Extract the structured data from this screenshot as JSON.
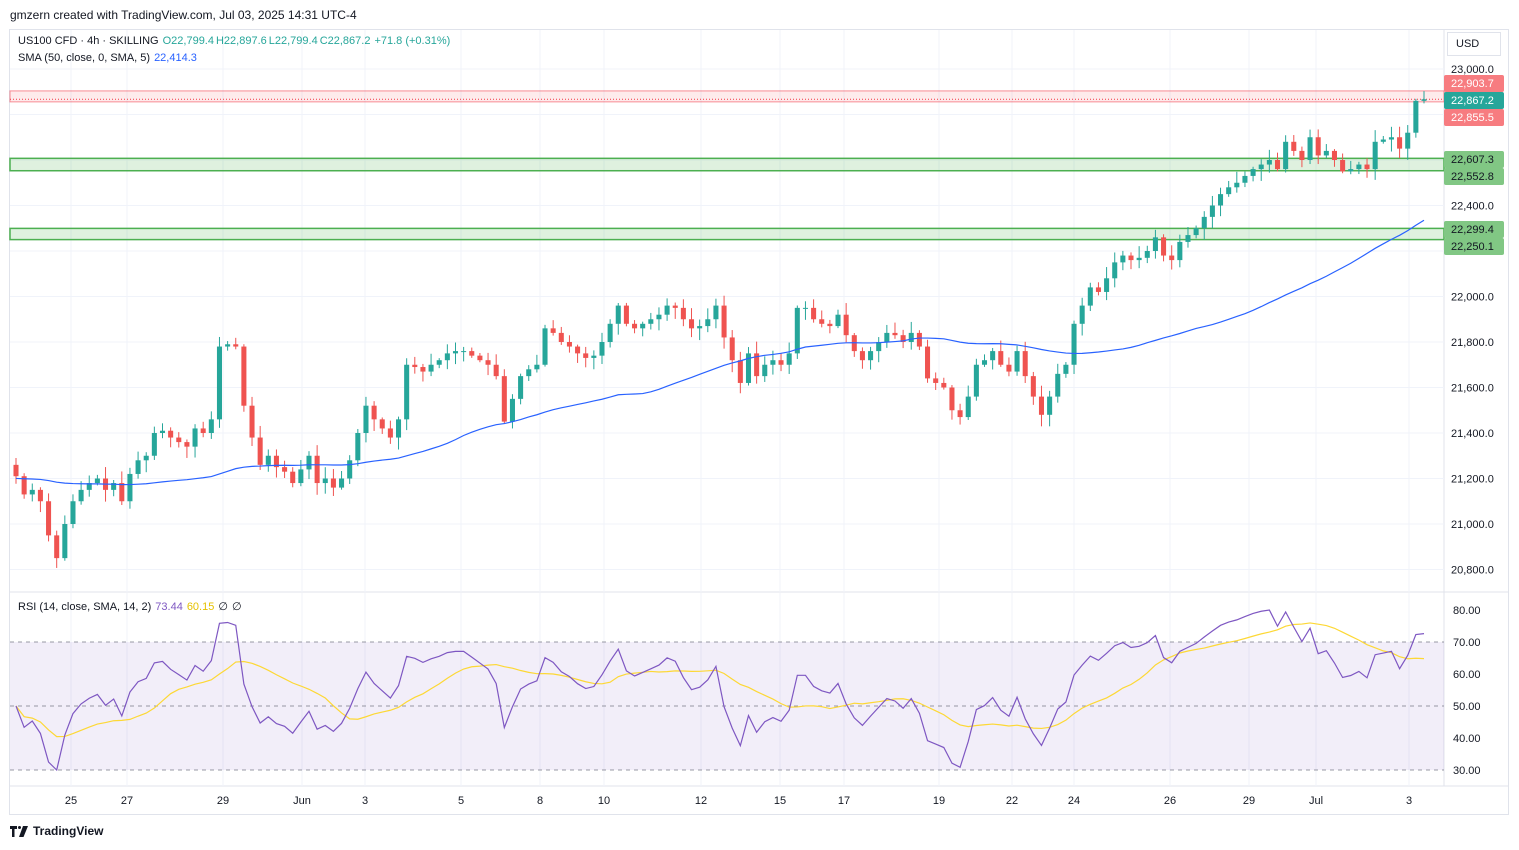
{
  "header": {
    "attribution": "gmzern created with TradingView.com, Jul 03, 2025 14:31 UTC-4"
  },
  "legend": {
    "symbol": "US100 CFD · 4h · SKILLING",
    "open": "O22,799.4",
    "high": "H22,897.6",
    "low": "L22,799.4",
    "close": "C22,867.2",
    "change": "+71.8 (+0.31%)",
    "sma_label": "SMA (50, close, 0, SMA, 5)",
    "sma_value": "22,414.3",
    "rsi_label": "RSI (14, close, SMA, 14, 2)",
    "rsi_value": "73.44",
    "rsi_ma_value": "60.15",
    "extra1": "∅",
    "extra2": "∅"
  },
  "currency": "USD",
  "footer": {
    "brand": "TradingView"
  },
  "colors": {
    "up": "#26a69a",
    "down": "#ef5350",
    "sma": "#2962ff",
    "rsi": "#7e57c2",
    "rsi_ma": "#fdd835",
    "zone": "#4caf50",
    "resistance": "#f23645"
  },
  "chart_data": [
    {
      "type": "candlestick",
      "symbol": "US100 CFD",
      "timeframe": "4h",
      "ylim": [
        20700,
        23100
      ],
      "y_ticks": [
        "23,000.0",
        "22,400.0",
        "22,000.0",
        "21,800.0",
        "21,600.0",
        "21,400.0",
        "21,200.0",
        "21,000.0",
        "20,800.0"
      ],
      "x_ticks": [
        "25",
        "27",
        "29",
        "Jun",
        "3",
        "5",
        "8",
        "10",
        "12",
        "15",
        "17",
        "19",
        "22",
        "24",
        "26",
        "29",
        "Jul",
        "3"
      ],
      "price_labels": [
        {
          "value": 22903.7,
          "text": "22,903.7",
          "kind": "resistance"
        },
        {
          "value": 22867.2,
          "text": "22,867.2",
          "kind": "last"
        },
        {
          "value": 22855.5,
          "text": "22,855.5",
          "kind": "resistance"
        },
        {
          "value": 22607.3,
          "text": "22,607.3",
          "kind": "zone"
        },
        {
          "value": 22552.8,
          "text": "22,552.8",
          "kind": "zone"
        },
        {
          "value": 22299.4,
          "text": "22,299.4",
          "kind": "zone"
        },
        {
          "value": 22250.1,
          "text": "22,250.1",
          "kind": "zone"
        }
      ],
      "zones": [
        {
          "from": 22855.5,
          "to": 22903.7,
          "kind": "resistance"
        },
        {
          "from": 22552.8,
          "to": 22607.3,
          "kind": "support"
        },
        {
          "from": 22250.1,
          "to": 22299.4,
          "kind": "support"
        }
      ],
      "close": [
        21210,
        21130,
        21150,
        21100,
        20950,
        20850,
        21000,
        21100,
        21150,
        21180,
        21200,
        21150,
        21180,
        21100,
        21220,
        21280,
        21300,
        21400,
        21410,
        21380,
        21360,
        21340,
        21420,
        21400,
        21460,
        21780,
        21790,
        21780,
        21520,
        21380,
        21260,
        21300,
        21250,
        21230,
        21180,
        21240,
        21300,
        21180,
        21200,
        21160,
        21200,
        21280,
        21400,
        21520,
        21460,
        21420,
        21380,
        21460,
        21700,
        21690,
        21670,
        21700,
        21720,
        21750,
        21760,
        21760,
        21740,
        21720,
        21700,
        21650,
        21450,
        21550,
        21650,
        21680,
        21700,
        21860,
        21840,
        21800,
        21780,
        21750,
        21730,
        21740,
        21800,
        21880,
        21960,
        21880,
        21860,
        21880,
        21900,
        21920,
        21960,
        21950,
        21900,
        21860,
        21870,
        21900,
        21960,
        21820,
        21720,
        21620,
        21750,
        21650,
        21700,
        21720,
        21700,
        21750,
        21950,
        21950,
        21900,
        21880,
        21870,
        21920,
        21830,
        21760,
        21720,
        21760,
        21800,
        21840,
        21830,
        21800,
        21840,
        21780,
        21640,
        21620,
        21600,
        21500,
        21470,
        21560,
        21700,
        21720,
        21760,
        21700,
        21670,
        21760,
        21650,
        21560,
        21480,
        21560,
        21660,
        21700,
        21880,
        21960,
        22040,
        22020,
        22080,
        22150,
        22180,
        22160,
        22170,
        22200,
        22260,
        22180,
        22160,
        22240,
        22270,
        22300,
        22350,
        22400,
        22450,
        22480,
        22500,
        22530,
        22560,
        22580,
        22600,
        22560,
        22680,
        22640,
        22600,
        22700,
        22620,
        22640,
        22600,
        22550,
        22560,
        22580,
        22560,
        22680,
        22690,
        22700,
        22650,
        22720,
        22860,
        22867
      ]
    },
    {
      "type": "line",
      "title": "RSI (14, close, SMA, 14, 2)",
      "ylim": [
        25,
        85
      ],
      "y_ticks": [
        "80.00",
        "70.00",
        "60.00",
        "50.00",
        "40.00",
        "30.00"
      ],
      "levels": [
        70,
        50,
        30
      ]
    }
  ]
}
